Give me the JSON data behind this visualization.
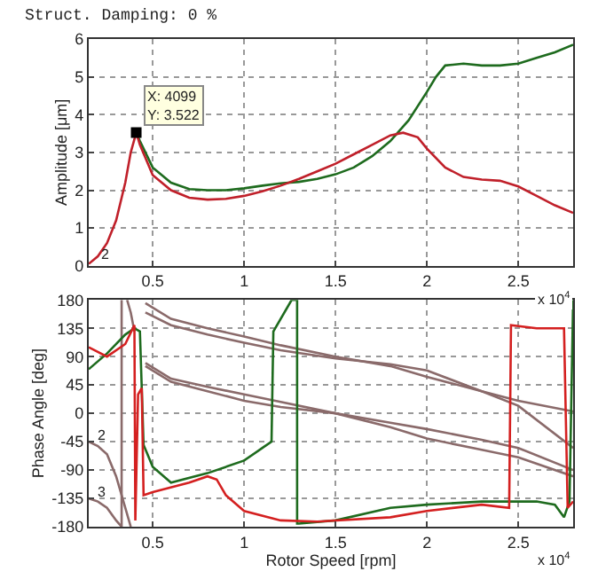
{
  "chart_data": [
    {
      "type": "line",
      "title": "Struct. Damping: 0 %",
      "ylabel": "Amplitude [μm]",
      "xlim": [
        0.15,
        2.8
      ],
      "xticks": [
        0.5,
        1,
        1.5,
        2,
        2.5
      ],
      "ylim": [
        0,
        6
      ],
      "yticks": [
        0,
        1,
        2,
        3,
        4,
        5,
        6
      ],
      "grid": true,
      "annotations": [
        {
          "text": "X: 4099\nY: 3.522",
          "x": 0.4099,
          "y": 3.522
        },
        {
          "text": "2",
          "x": 0.2,
          "y": 0.3
        },
        "x 10$^{4}$"
      ],
      "series": [
        {
          "color": "#1e6b1e",
          "x": [
            0.41,
            0.43,
            0.5,
            0.6,
            0.7,
            0.8,
            0.9,
            1.0,
            1.1,
            1.2,
            1.3,
            1.4,
            1.5,
            1.6,
            1.7,
            1.8,
            1.9,
            2.0,
            2.05,
            2.1,
            2.2,
            2.3,
            2.4,
            2.5,
            2.6,
            2.7,
            2.8
          ],
          "values": [
            3.52,
            3.3,
            2.6,
            2.2,
            2.03,
            2.0,
            2.0,
            2.05,
            2.12,
            2.18,
            2.22,
            2.3,
            2.42,
            2.6,
            2.9,
            3.3,
            3.85,
            4.6,
            5.0,
            5.3,
            5.35,
            5.3,
            5.3,
            5.35,
            5.5,
            5.65,
            5.85
          ]
        },
        {
          "color": "#c0202a",
          "x": [
            0.15,
            0.2,
            0.25,
            0.3,
            0.35,
            0.38,
            0.41,
            0.43,
            0.5,
            0.6,
            0.7,
            0.8,
            0.9,
            1.0,
            1.1,
            1.2,
            1.3,
            1.4,
            1.5,
            1.6,
            1.7,
            1.8,
            1.87,
            1.95,
            2.0,
            2.1,
            2.2,
            2.3,
            2.4,
            2.5,
            2.6,
            2.7,
            2.8
          ],
          "values": [
            0.05,
            0.25,
            0.6,
            1.2,
            2.2,
            3.0,
            3.52,
            3.2,
            2.4,
            2.0,
            1.8,
            1.75,
            1.77,
            1.85,
            1.97,
            2.12,
            2.3,
            2.5,
            2.7,
            2.95,
            3.2,
            3.45,
            3.52,
            3.4,
            3.1,
            2.6,
            2.35,
            2.28,
            2.25,
            2.1,
            1.85,
            1.6,
            1.4
          ]
        }
      ]
    },
    {
      "type": "line",
      "xlabel": "Rotor Speed [rpm]",
      "ylabel": "Phase Angle [deg]",
      "xlim": [
        0.15,
        2.8
      ],
      "xticks": [
        0.5,
        1,
        1.5,
        2,
        2.5
      ],
      "ylim": [
        -180,
        180
      ],
      "yticks": [
        -180,
        -135,
        -90,
        -45,
        0,
        45,
        90,
        135,
        180
      ],
      "grid": true,
      "annotations": [
        {
          "text": "2",
          "x": 0.18,
          "y": -35
        },
        {
          "text": "3",
          "x": 0.18,
          "y": -125
        },
        "x 10$^{4}$"
      ],
      "series": [
        {
          "color": "#8a6a6a",
          "x": [
            0.46,
            0.6,
            0.8,
            1.0,
            1.2,
            1.5,
            1.8,
            2.0,
            2.3,
            2.5,
            2.8
          ],
          "values": [
            175,
            150,
            135,
            122,
            108,
            90,
            75,
            58,
            35,
            20,
            3
          ]
        },
        {
          "color": "#8a6a6a",
          "x": [
            0.46,
            0.6,
            0.8,
            1.0,
            1.2,
            1.5,
            1.8,
            2.0,
            2.3,
            2.5,
            2.8
          ],
          "values": [
            160,
            140,
            125,
            112,
            100,
            87,
            78,
            68,
            35,
            12,
            -55
          ]
        },
        {
          "color": "#8a6a6a",
          "x": [
            0.46,
            0.6,
            0.8,
            1.0,
            1.2,
            1.5,
            1.8,
            2.0,
            2.3,
            2.5,
            2.8
          ],
          "values": [
            80,
            55,
            42,
            30,
            18,
            0,
            -15,
            -25,
            -42,
            -55,
            -90
          ]
        },
        {
          "color": "#8a6a6a",
          "x": [
            0.46,
            0.6,
            0.8,
            1.0,
            1.2,
            1.5,
            1.8,
            2.0,
            2.3,
            2.5,
            2.8
          ],
          "values": [
            75,
            50,
            35,
            20,
            10,
            0,
            -22,
            -40,
            -58,
            -70,
            -100
          ]
        },
        {
          "color": "#8a6a6a",
          "x": [
            0.15,
            0.2,
            0.25,
            0.3,
            0.35,
            0.38
          ],
          "values": [
            -45,
            -52,
            -65,
            -100,
            -150,
            -180
          ]
        },
        {
          "color": "#8a6a6a",
          "x": [
            0.15,
            0.2,
            0.25,
            0.3,
            0.33
          ],
          "values": [
            -135,
            -140,
            -150,
            -170,
            -180
          ]
        },
        {
          "color": "#8a6a6a",
          "x": [
            0.33,
            0.33
          ],
          "values": [
            180,
            -180
          ]
        },
        {
          "color": "#8a6a6a",
          "x": [
            0.36,
            0.38,
            0.4
          ],
          "values": [
            180,
            160,
            130
          ]
        },
        {
          "color": "#1e6b1e",
          "x": [
            0.15,
            0.25,
            0.35,
            0.4,
            0.43,
            0.45,
            0.5,
            0.6,
            0.8,
            1.0,
            1.1,
            1.15,
            1.16,
            1.26,
            1.29,
            1.29,
            1.3,
            1.5,
            1.8,
            2.0,
            2.3,
            2.6,
            2.7,
            2.75,
            2.78,
            2.8
          ],
          "values": [
            70,
            95,
            125,
            135,
            130,
            -50,
            -85,
            -110,
            -95,
            -75,
            -55,
            -45,
            130,
            180,
            180,
            -175,
            -175,
            -170,
            -150,
            -145,
            -140,
            -140,
            -145,
            -165,
            -140,
            180
          ]
        },
        {
          "color": "#d42020",
          "x": [
            0.15,
            0.25,
            0.35,
            0.4,
            0.405,
            0.42,
            0.44,
            0.45,
            0.5,
            0.7,
            0.8,
            0.85,
            0.9,
            1.0,
            1.2,
            1.4,
            1.8,
            2.0,
            2.3,
            2.45,
            2.46,
            2.6,
            2.75,
            2.77,
            2.8
          ],
          "values": [
            105,
            90,
            110,
            140,
            -170,
            30,
            40,
            -130,
            -125,
            -110,
            -100,
            -105,
            -130,
            -155,
            -170,
            -172,
            -165,
            -155,
            -145,
            -150,
            140,
            135,
            135,
            -150,
            -140
          ]
        }
      ]
    }
  ]
}
